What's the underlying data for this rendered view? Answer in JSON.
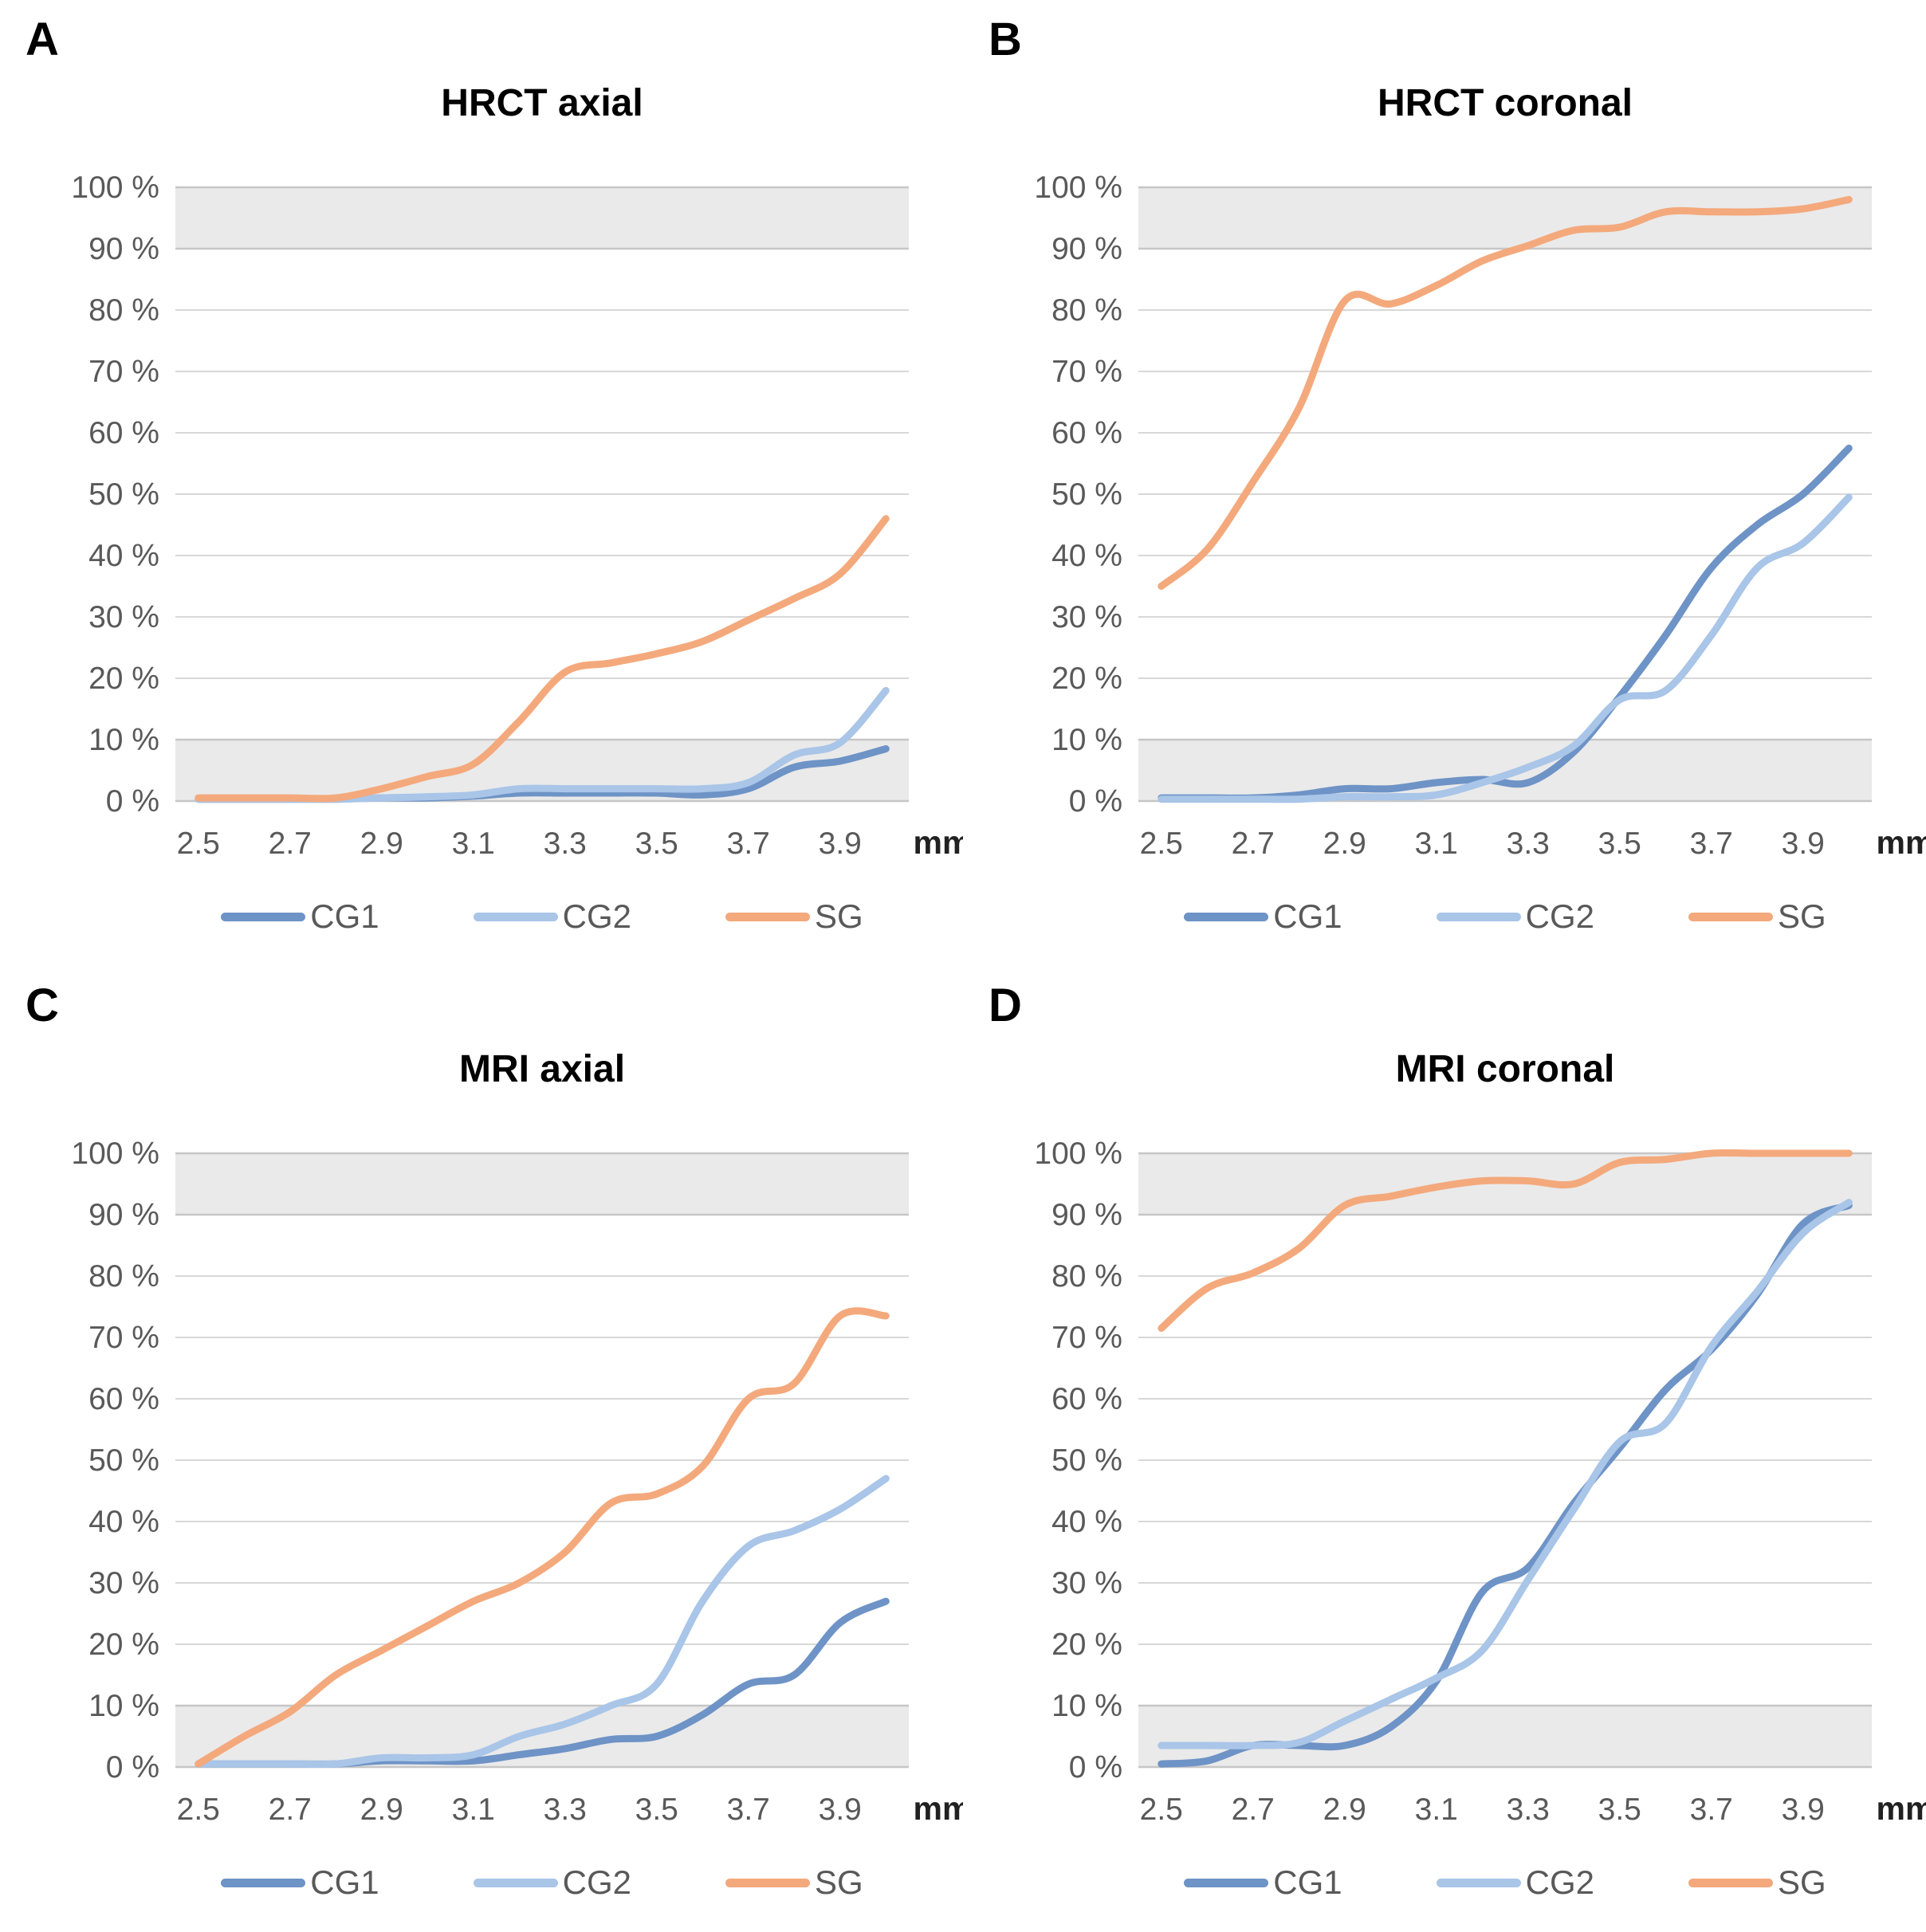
{
  "colors": {
    "cg1": "#6E93C6",
    "cg2": "#A9C5E8",
    "sg": "#F4A97C",
    "band_fill": "#EAEAEA",
    "grid": "#D8D8D8",
    "grid_strong": "#C6C6C6",
    "tick_text": "#595959",
    "unit_text": "#212121",
    "title_text": "#000000"
  },
  "legend_entries": [
    "CG1",
    "CG2",
    "SG"
  ],
  "chart_data": [
    {
      "panel_letter": "A",
      "title": "HRCT axial",
      "type": "line",
      "xlabel": "mm",
      "ylabel": "",
      "ylim": [
        0,
        100
      ],
      "grid": true,
      "legend_position": "bottom",
      "shaded_bands_pct": [
        [
          90,
          100
        ],
        [
          0,
          10
        ]
      ],
      "x_mm": [
        2.5,
        2.6,
        2.7,
        2.8,
        2.9,
        3.0,
        3.1,
        3.2,
        3.3,
        3.4,
        3.5,
        3.6,
        3.7,
        3.8,
        3.9,
        4.0
      ],
      "x_tick_labels": [
        "2.5",
        "2.7",
        "2.9",
        "3.1",
        "3.3",
        "3.5",
        "3.7",
        "3.9"
      ],
      "x_unit": "mm",
      "y_tick_labels_top_down": [
        "100 %",
        "90 %",
        "80 %",
        "70 %",
        "60 %",
        "50 %",
        "40 %",
        "30 %",
        "20 %",
        "10 %",
        "0 %"
      ],
      "series": [
        {
          "name": "CG1",
          "color": "#6E93C6",
          "values": [
            0.3,
            0.3,
            0.3,
            0.3,
            0.5,
            0.5,
            0.8,
            1.3,
            1.3,
            1.3,
            1.3,
            1.0,
            2.0,
            5.5,
            6.5,
            8.5
          ]
        },
        {
          "name": "CG2",
          "color": "#A9C5E8",
          "values": [
            0.3,
            0.3,
            0.3,
            0.3,
            0.5,
            0.7,
            1.0,
            2.0,
            2.0,
            2.0,
            2.0,
            2.0,
            3.0,
            7.5,
            9.5,
            18.0
          ]
        },
        {
          "name": "SG",
          "color": "#F4A97C",
          "values": [
            0.5,
            0.5,
            0.5,
            0.5,
            2.0,
            4.0,
            6.0,
            13.0,
            21.0,
            22.5,
            24.0,
            26.0,
            29.5,
            33.0,
            37.0,
            46.0
          ]
        }
      ]
    },
    {
      "panel_letter": "B",
      "title": "HRCT coronal",
      "type": "line",
      "xlabel": "mm",
      "ylabel": "",
      "ylim": [
        0,
        100
      ],
      "grid": true,
      "legend_position": "bottom",
      "shaded_bands_pct": [
        [
          90,
          100
        ],
        [
          0,
          10
        ]
      ],
      "x_mm": [
        2.5,
        2.6,
        2.7,
        2.8,
        2.9,
        3.0,
        3.1,
        3.2,
        3.3,
        3.4,
        3.5,
        3.6,
        3.7,
        3.8,
        3.9,
        4.0
      ],
      "x_tick_labels": [
        "2.5",
        "2.7",
        "2.9",
        "3.1",
        "3.3",
        "3.5",
        "3.7",
        "3.9"
      ],
      "x_unit": "mm",
      "y_tick_labels_top_down": [
        "100 %",
        "90 %",
        "80 %",
        "70 %",
        "60 %",
        "50 %",
        "40 %",
        "30 %",
        "20 %",
        "10 %",
        "0 %"
      ],
      "series": [
        {
          "name": "CG1",
          "color": "#6E93C6",
          "values": [
            0.5,
            0.5,
            0.5,
            1.0,
            2.0,
            2.0,
            3.0,
            3.5,
            3.0,
            8.0,
            17.0,
            27.0,
            38.0,
            45.0,
            50.0,
            57.5
          ]
        },
        {
          "name": "CG2",
          "color": "#A9C5E8",
          "values": [
            0.3,
            0.3,
            0.3,
            0.3,
            0.7,
            0.7,
            1.0,
            3.0,
            5.5,
            9.0,
            16.5,
            18.0,
            27.0,
            38.0,
            42.0,
            49.5
          ]
        },
        {
          "name": "SG",
          "color": "#F4A97C",
          "values": [
            35.0,
            41.0,
            52.0,
            64.0,
            81.5,
            81.0,
            84.0,
            88.0,
            90.5,
            93.0,
            93.5,
            96.0,
            96.0,
            96.0,
            96.5,
            98.0
          ]
        }
      ]
    },
    {
      "panel_letter": "C",
      "title": "MRI axial",
      "type": "line",
      "xlabel": "mm",
      "ylabel": "",
      "ylim": [
        0,
        100
      ],
      "grid": true,
      "legend_position": "bottom",
      "shaded_bands_pct": [
        [
          90,
          100
        ],
        [
          0,
          10
        ]
      ],
      "x_mm": [
        2.5,
        2.6,
        2.7,
        2.8,
        2.9,
        3.0,
        3.1,
        3.2,
        3.3,
        3.4,
        3.5,
        3.6,
        3.7,
        3.8,
        3.9,
        4.0
      ],
      "x_tick_labels": [
        "2.5",
        "2.7",
        "2.9",
        "3.1",
        "3.3",
        "3.5",
        "3.7",
        "3.9"
      ],
      "x_unit": "mm",
      "y_tick_labels_top_down": [
        "100 %",
        "90 %",
        "80 %",
        "70 %",
        "60 %",
        "50 %",
        "40 %",
        "30 %",
        "20 %",
        "10 %",
        "0 %"
      ],
      "series": [
        {
          "name": "CG1",
          "color": "#6E93C6",
          "values": [
            0.5,
            0.5,
            0.5,
            0.5,
            1.0,
            1.0,
            1.0,
            2.0,
            3.0,
            4.5,
            5.0,
            8.5,
            13.5,
            15.0,
            23.5,
            27.0
          ]
        },
        {
          "name": "CG2",
          "color": "#A9C5E8",
          "values": [
            0.5,
            0.5,
            0.5,
            0.5,
            1.5,
            1.5,
            2.0,
            5.0,
            7.0,
            10.0,
            13.5,
            27.0,
            36.0,
            38.5,
            42.0,
            47.0
          ]
        },
        {
          "name": "SG",
          "color": "#F4A97C",
          "values": [
            0.5,
            5.0,
            9.0,
            15.0,
            19.0,
            23.0,
            27.0,
            30.0,
            35.0,
            43.0,
            44.5,
            49.0,
            60.0,
            62.5,
            73.5,
            73.5
          ]
        }
      ]
    },
    {
      "panel_letter": "D",
      "title": "MRI coronal",
      "type": "line",
      "xlabel": "mm",
      "ylabel": "",
      "ylim": [
        0,
        100
      ],
      "grid": true,
      "legend_position": "bottom",
      "shaded_bands_pct": [
        [
          90,
          100
        ],
        [
          0,
          10
        ]
      ],
      "x_mm": [
        2.5,
        2.6,
        2.7,
        2.8,
        2.9,
        3.0,
        3.1,
        3.2,
        3.3,
        3.4,
        3.5,
        3.6,
        3.7,
        3.8,
        3.9,
        4.0
      ],
      "x_tick_labels": [
        "2.5",
        "2.7",
        "2.9",
        "3.1",
        "3.3",
        "3.5",
        "3.7",
        "3.9"
      ],
      "x_unit": "mm",
      "y_tick_labels_top_down": [
        "100 %",
        "90 %",
        "80 %",
        "70 %",
        "60 %",
        "50 %",
        "40 %",
        "30 %",
        "20 %",
        "10 %",
        "0 %"
      ],
      "series": [
        {
          "name": "CG1",
          "color": "#6E93C6",
          "values": [
            0.5,
            1.0,
            3.5,
            3.5,
            3.5,
            6.5,
            14.0,
            28.5,
            32.5,
            43.0,
            52.0,
            61.5,
            68.0,
            77.0,
            88.5,
            91.5
          ]
        },
        {
          "name": "CG2",
          "color": "#A9C5E8",
          "values": [
            3.5,
            3.5,
            3.5,
            4.0,
            7.5,
            11.0,
            14.5,
            19.0,
            30.5,
            42.0,
            53.0,
            56.0,
            68.5,
            77.5,
            87.0,
            92.0
          ]
        },
        {
          "name": "SG",
          "color": "#F4A97C",
          "values": [
            71.5,
            78.0,
            80.5,
            84.5,
            91.5,
            93.0,
            94.5,
            95.5,
            95.5,
            95.0,
            98.5,
            99.0,
            100.0,
            100.0,
            100.0,
            100.0
          ]
        }
      ]
    }
  ]
}
